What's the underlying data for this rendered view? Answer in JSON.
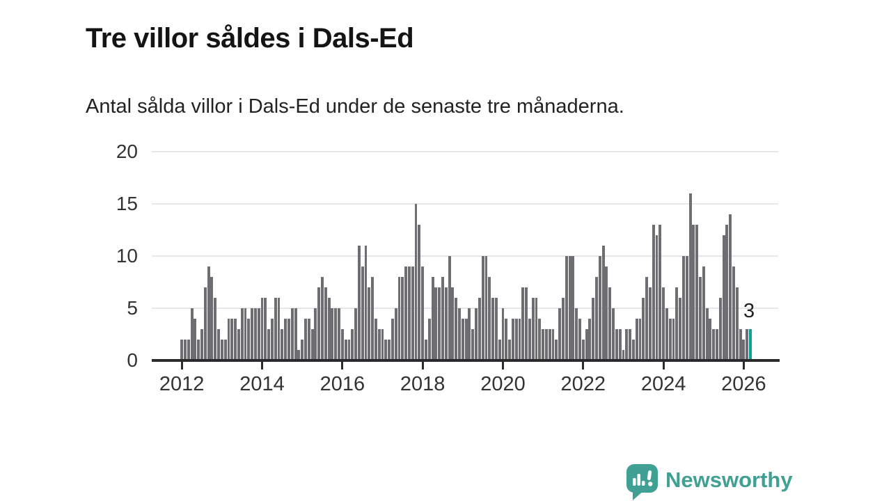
{
  "title": "Tre villor såldes i Dals-Ed",
  "subtitle": "Antal sålda villor i Dals-Ed under de senaste tre månaderna.",
  "annotation": {
    "last_value_label": "3"
  },
  "branding": {
    "name": "Newsworthy"
  },
  "colors": {
    "bar": "#6E6E72",
    "highlight": "#0CA09D",
    "logo_teal": "#3FA093",
    "grid": "#e6e6e6",
    "axis": "#2b2b2b",
    "text": "#222222"
  },
  "chart_data": {
    "type": "bar",
    "title": "Tre villor såldes i Dals-Ed",
    "subtitle": "Antal sålda villor i Dals-Ed under de senaste tre månaderna.",
    "unit": "antal sålda villor (rullande 3 månader)",
    "frequency": "monthly",
    "x_start": "2012-01",
    "x_end": "2026-03",
    "ylim": [
      0,
      20
    ],
    "y_ticks": [
      0,
      5,
      10,
      15,
      20
    ],
    "x_tick_labels": [
      "2012",
      "2014",
      "2016",
      "2018",
      "2020",
      "2022",
      "2024",
      "2026"
    ],
    "grid": "horizontal",
    "legend": "none",
    "highlight_last_bar": true,
    "last_bar_label": "3",
    "values": [
      2,
      2,
      2,
      5,
      4,
      2,
      3,
      7,
      9,
      8,
      6,
      3,
      2,
      2,
      4,
      4,
      4,
      3,
      5,
      5,
      4,
      5,
      5,
      5,
      6,
      6,
      3,
      4,
      6,
      6,
      3,
      4,
      4,
      5,
      5,
      1,
      2,
      4,
      4,
      3,
      5,
      7,
      8,
      7,
      6,
      5,
      5,
      5,
      3,
      2,
      2,
      3,
      5,
      11,
      9,
      11,
      7,
      8,
      4,
      3,
      3,
      2,
      2,
      4,
      5,
      8,
      8,
      9,
      9,
      9,
      15,
      13,
      9,
      2,
      4,
      8,
      7,
      7,
      8,
      7,
      10,
      7,
      6,
      5,
      4,
      4,
      5,
      3,
      5,
      6,
      10,
      10,
      8,
      6,
      6,
      2,
      5,
      4,
      2,
      4,
      4,
      4,
      7,
      7,
      4,
      6,
      6,
      4,
      3,
      3,
      3,
      3,
      2,
      5,
      6,
      10,
      10,
      10,
      5,
      4,
      2,
      3,
      4,
      6,
      8,
      10,
      11,
      9,
      7,
      5,
      3,
      3,
      1,
      3,
      3,
      2,
      4,
      4,
      6,
      8,
      7,
      13,
      12,
      13,
      7,
      5,
      4,
      4,
      7,
      6,
      10,
      10,
      16,
      13,
      13,
      8,
      9,
      5,
      4,
      3,
      3,
      6,
      12,
      13,
      14,
      9,
      7,
      3,
      2,
      3,
      3
    ]
  }
}
